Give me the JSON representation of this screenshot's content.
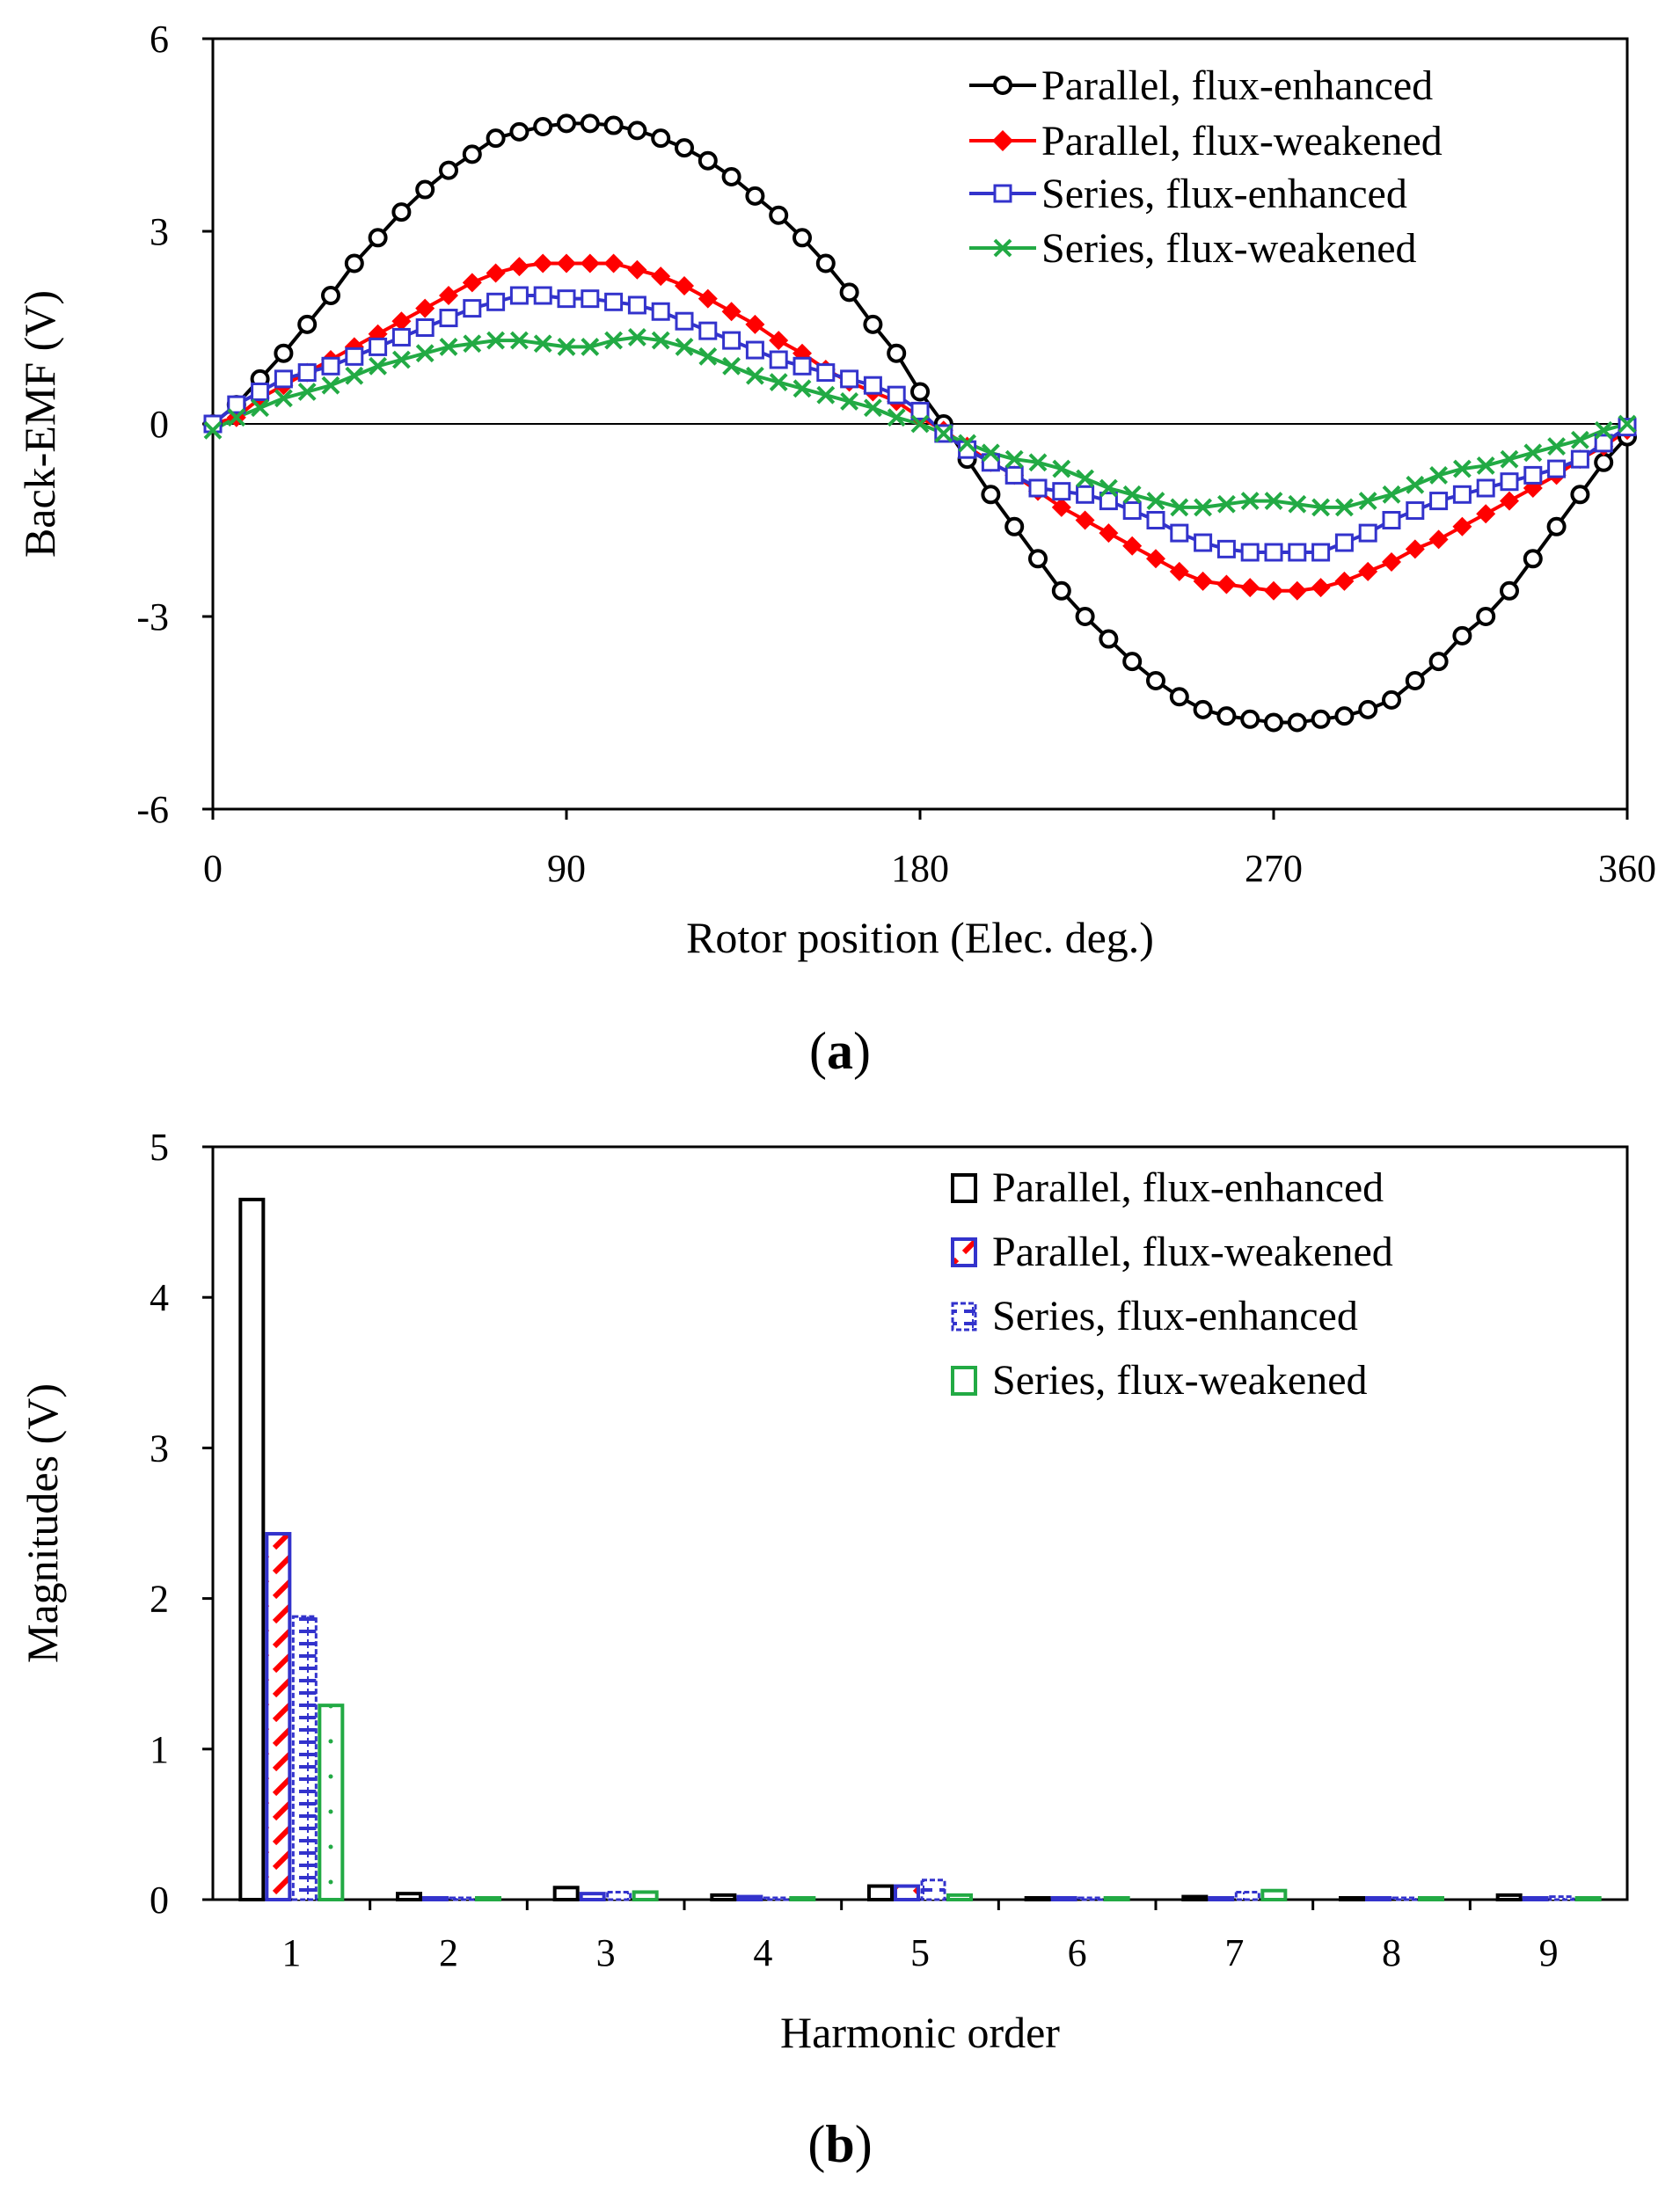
{
  "chart_data": [
    {
      "type": "line",
      "panel_label": "a",
      "xlabel": "Rotor position (Elec. deg.)",
      "ylabel": "Back-EMF (V)",
      "xlim": [
        0,
        360
      ],
      "ylim": [
        -6,
        6
      ],
      "xticks": [
        "0",
        "90",
        "180",
        "270",
        "360"
      ],
      "yticks": [
        "-6",
        "-3",
        "0",
        "3",
        "6"
      ],
      "grid": false,
      "legend_position": "top-right",
      "x": [
        0,
        6,
        12,
        18,
        24,
        30,
        36,
        42,
        48,
        54,
        60,
        66,
        72,
        78,
        84,
        90,
        96,
        102,
        108,
        114,
        120,
        126,
        132,
        138,
        144,
        150,
        156,
        162,
        168,
        174,
        180,
        186,
        192,
        198,
        204,
        210,
        216,
        222,
        228,
        234,
        240,
        246,
        252,
        258,
        264,
        270,
        276,
        282,
        288,
        294,
        300,
        306,
        312,
        318,
        324,
        330,
        336,
        342,
        348,
        354,
        360
      ],
      "series": [
        {
          "name": "Parallel, flux-enhanced",
          "color": "#000000",
          "marker": "circle",
          "values": [
            0.0,
            0.3,
            0.7,
            1.1,
            1.55,
            2.0,
            2.5,
            2.9,
            3.3,
            3.65,
            3.95,
            4.2,
            4.45,
            4.55,
            4.63,
            4.68,
            4.68,
            4.65,
            4.57,
            4.45,
            4.3,
            4.1,
            3.85,
            3.55,
            3.25,
            2.9,
            2.5,
            2.05,
            1.55,
            1.1,
            0.5,
            0.0,
            -0.55,
            -1.1,
            -1.6,
            -2.1,
            -2.6,
            -3.0,
            -3.35,
            -3.7,
            -4.0,
            -4.25,
            -4.45,
            -4.55,
            -4.6,
            -4.65,
            -4.65,
            -4.6,
            -4.55,
            -4.45,
            -4.3,
            -4.0,
            -3.7,
            -3.3,
            -3.0,
            -2.6,
            -2.1,
            -1.6,
            -1.1,
            -0.6,
            -0.2
          ]
        },
        {
          "name": "Parallel, flux-weakened",
          "color": "#ff0000",
          "marker": "diamond",
          "values": [
            0.0,
            0.1,
            0.4,
            0.6,
            0.8,
            1.0,
            1.2,
            1.4,
            1.6,
            1.8,
            2.0,
            2.2,
            2.35,
            2.45,
            2.5,
            2.5,
            2.5,
            2.5,
            2.4,
            2.3,
            2.15,
            1.95,
            1.75,
            1.55,
            1.3,
            1.1,
            0.85,
            0.65,
            0.5,
            0.35,
            0.1,
            -0.1,
            -0.35,
            -0.6,
            -0.8,
            -1.05,
            -1.3,
            -1.5,
            -1.7,
            -1.9,
            -2.1,
            -2.3,
            -2.45,
            -2.5,
            -2.55,
            -2.6,
            -2.6,
            -2.55,
            -2.45,
            -2.3,
            -2.15,
            -1.95,
            -1.8,
            -1.6,
            -1.4,
            -1.2,
            -1.0,
            -0.8,
            -0.55,
            -0.35,
            -0.1
          ]
        },
        {
          "name": "Series, flux-enhanced",
          "color": "#3333cc",
          "marker": "square",
          "values": [
            0.0,
            0.3,
            0.5,
            0.7,
            0.8,
            0.9,
            1.05,
            1.2,
            1.35,
            1.5,
            1.65,
            1.8,
            1.9,
            2.0,
            2.0,
            1.95,
            1.95,
            1.9,
            1.85,
            1.75,
            1.6,
            1.45,
            1.3,
            1.15,
            1.0,
            0.9,
            0.8,
            0.7,
            0.6,
            0.45,
            0.2,
            -0.15,
            -0.4,
            -0.6,
            -0.8,
            -1.0,
            -1.05,
            -1.1,
            -1.2,
            -1.35,
            -1.5,
            -1.7,
            -1.85,
            -1.95,
            -2.0,
            -2.0,
            -2.0,
            -2.0,
            -1.85,
            -1.7,
            -1.5,
            -1.35,
            -1.2,
            -1.1,
            -1.0,
            -0.9,
            -0.8,
            -0.7,
            -0.55,
            -0.3,
            -0.05
          ]
        },
        {
          "name": "Series, flux-weakened",
          "color": "#22aa44",
          "marker": "x",
          "values": [
            -0.1,
            0.1,
            0.25,
            0.4,
            0.5,
            0.6,
            0.75,
            0.9,
            1.0,
            1.1,
            1.2,
            1.25,
            1.3,
            1.3,
            1.25,
            1.2,
            1.2,
            1.3,
            1.35,
            1.3,
            1.2,
            1.05,
            0.9,
            0.75,
            0.65,
            0.55,
            0.45,
            0.35,
            0.25,
            0.1,
            0.0,
            -0.15,
            -0.3,
            -0.45,
            -0.55,
            -0.6,
            -0.7,
            -0.85,
            -1.0,
            -1.1,
            -1.2,
            -1.3,
            -1.3,
            -1.25,
            -1.2,
            -1.2,
            -1.25,
            -1.3,
            -1.3,
            -1.2,
            -1.1,
            -0.95,
            -0.8,
            -0.7,
            -0.65,
            -0.55,
            -0.45,
            -0.35,
            -0.25,
            -0.1,
            0.0
          ]
        }
      ]
    },
    {
      "type": "bar",
      "panel_label": "b",
      "xlabel": "Harmonic order",
      "ylabel": "Magnitudes (V)",
      "ylim": [
        0,
        5
      ],
      "yticks": [
        "0",
        "1",
        "2",
        "3",
        "4",
        "5"
      ],
      "grid": false,
      "legend_position": "top-right",
      "categories": [
        "1",
        "2",
        "3",
        "4",
        "5",
        "6",
        "7",
        "8",
        "9"
      ],
      "series": [
        {
          "name": "Parallel, flux-enhanced",
          "color": "#000000",
          "fill": "none",
          "values": [
            4.65,
            0.04,
            0.08,
            0.03,
            0.09,
            0.01,
            0.02,
            0.01,
            0.03
          ]
        },
        {
          "name": "Parallel, flux-weakened",
          "color": "#3333cc",
          "fill": "redhatch",
          "values": [
            2.43,
            0.01,
            0.04,
            0.02,
            0.09,
            0.01,
            0.01,
            0.01,
            0.01
          ]
        },
        {
          "name": "Series, flux-enhanced",
          "color": "#3333cc",
          "fill": "bluehatch",
          "values": [
            1.88,
            0.01,
            0.05,
            0.01,
            0.13,
            0.01,
            0.05,
            0.005,
            0.02
          ]
        },
        {
          "name": "Series, flux-weakened",
          "color": "#22aa44",
          "fill": "dots",
          "values": [
            1.29,
            0.005,
            0.05,
            0.005,
            0.03,
            0.005,
            0.06,
            0.005,
            0.01
          ]
        }
      ]
    }
  ]
}
